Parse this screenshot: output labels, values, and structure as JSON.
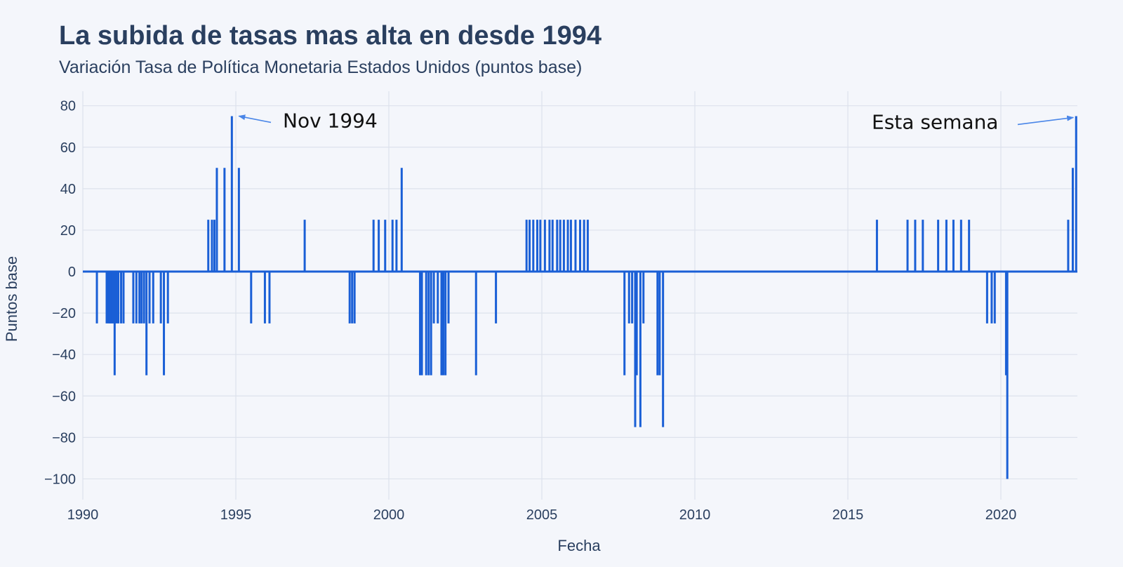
{
  "chart_data": {
    "type": "line",
    "title": "La subida de tasas mas alta en desde 1994",
    "subtitle": "Variación Tasa de Política Monetaria Estados Unidos (puntos base)",
    "xlabel": "Fecha",
    "ylabel": "Puntos base",
    "xlim": [
      1990.0,
      2022.5
    ],
    "ylim": [
      -110,
      87
    ],
    "x_ticks": [
      1990,
      1995,
      2000,
      2005,
      2010,
      2015,
      2020
    ],
    "y_ticks": [
      80,
      60,
      40,
      20,
      0,
      -20,
      -40,
      -60,
      -80,
      -100
    ],
    "y_tick_labels": [
      "80",
      "60",
      "40",
      "20",
      "0",
      "−20",
      "−40",
      "−60",
      "−80",
      "−100"
    ],
    "grid": true,
    "series": [
      {
        "color": "#1a5fd6",
        "points": [
          {
            "x": 1990.46,
            "y": -25
          },
          {
            "x": 1990.78,
            "y": -25
          },
          {
            "x": 1990.84,
            "y": -25
          },
          {
            "x": 1990.88,
            "y": -25
          },
          {
            "x": 1990.92,
            "y": -25
          },
          {
            "x": 1990.96,
            "y": -25
          },
          {
            "x": 1991.0,
            "y": -25
          },
          {
            "x": 1991.04,
            "y": -50
          },
          {
            "x": 1991.1,
            "y": -25
          },
          {
            "x": 1991.16,
            "y": -25
          },
          {
            "x": 1991.25,
            "y": -25
          },
          {
            "x": 1991.33,
            "y": -25
          },
          {
            "x": 1991.65,
            "y": -25
          },
          {
            "x": 1991.75,
            "y": -25
          },
          {
            "x": 1991.85,
            "y": -25
          },
          {
            "x": 1991.92,
            "y": -25
          },
          {
            "x": 1992.0,
            "y": -25
          },
          {
            "x": 1992.08,
            "y": -50
          },
          {
            "x": 1992.18,
            "y": -25
          },
          {
            "x": 1992.3,
            "y": -25
          },
          {
            "x": 1992.55,
            "y": -25
          },
          {
            "x": 1992.65,
            "y": -50
          },
          {
            "x": 1992.78,
            "y": -25
          },
          {
            "x": 1994.1,
            "y": 25
          },
          {
            "x": 1994.22,
            "y": 25
          },
          {
            "x": 1994.3,
            "y": 25
          },
          {
            "x": 1994.38,
            "y": 50
          },
          {
            "x": 1994.63,
            "y": 50
          },
          {
            "x": 1994.87,
            "y": 75
          },
          {
            "x": 1995.1,
            "y": 50
          },
          {
            "x": 1995.5,
            "y": -25
          },
          {
            "x": 1995.95,
            "y": -25
          },
          {
            "x": 1996.1,
            "y": -25
          },
          {
            "x": 1997.25,
            "y": 25
          },
          {
            "x": 1998.72,
            "y": -25
          },
          {
            "x": 1998.8,
            "y": -25
          },
          {
            "x": 1998.88,
            "y": -25
          },
          {
            "x": 1999.5,
            "y": 25
          },
          {
            "x": 1999.67,
            "y": 25
          },
          {
            "x": 1999.88,
            "y": 25
          },
          {
            "x": 2000.12,
            "y": 25
          },
          {
            "x": 2000.25,
            "y": 25
          },
          {
            "x": 2000.42,
            "y": 50
          },
          {
            "x": 2001.02,
            "y": -50
          },
          {
            "x": 2001.08,
            "y": -50
          },
          {
            "x": 2001.22,
            "y": -50
          },
          {
            "x": 2001.3,
            "y": -50
          },
          {
            "x": 2001.38,
            "y": -50
          },
          {
            "x": 2001.47,
            "y": -25
          },
          {
            "x": 2001.6,
            "y": -25
          },
          {
            "x": 2001.72,
            "y": -50
          },
          {
            "x": 2001.78,
            "y": -50
          },
          {
            "x": 2001.85,
            "y": -50
          },
          {
            "x": 2001.95,
            "y": -25
          },
          {
            "x": 2002.85,
            "y": -50
          },
          {
            "x": 2003.5,
            "y": -25
          },
          {
            "x": 2004.5,
            "y": 25
          },
          {
            "x": 2004.6,
            "y": 25
          },
          {
            "x": 2004.72,
            "y": 25
          },
          {
            "x": 2004.85,
            "y": 25
          },
          {
            "x": 2004.95,
            "y": 25
          },
          {
            "x": 2005.1,
            "y": 25
          },
          {
            "x": 2005.25,
            "y": 25
          },
          {
            "x": 2005.35,
            "y": 25
          },
          {
            "x": 2005.5,
            "y": 25
          },
          {
            "x": 2005.6,
            "y": 25
          },
          {
            "x": 2005.72,
            "y": 25
          },
          {
            "x": 2005.85,
            "y": 25
          },
          {
            "x": 2005.95,
            "y": 25
          },
          {
            "x": 2006.1,
            "y": 25
          },
          {
            "x": 2006.25,
            "y": 25
          },
          {
            "x": 2006.38,
            "y": 25
          },
          {
            "x": 2006.5,
            "y": 25
          },
          {
            "x": 2007.7,
            "y": -50
          },
          {
            "x": 2007.85,
            "y": -25
          },
          {
            "x": 2007.95,
            "y": -25
          },
          {
            "x": 2008.05,
            "y": -75
          },
          {
            "x": 2008.1,
            "y": -50
          },
          {
            "x": 2008.22,
            "y": -75
          },
          {
            "x": 2008.32,
            "y": -25
          },
          {
            "x": 2008.78,
            "y": -50
          },
          {
            "x": 2008.85,
            "y": -50
          },
          {
            "x": 2008.96,
            "y": -75
          },
          {
            "x": 2015.95,
            "y": 25
          },
          {
            "x": 2016.95,
            "y": 25
          },
          {
            "x": 2017.2,
            "y": 25
          },
          {
            "x": 2017.45,
            "y": 25
          },
          {
            "x": 2017.95,
            "y": 25
          },
          {
            "x": 2018.22,
            "y": 25
          },
          {
            "x": 2018.45,
            "y": 25
          },
          {
            "x": 2018.7,
            "y": 25
          },
          {
            "x": 2018.96,
            "y": 25
          },
          {
            "x": 2019.55,
            "y": -25
          },
          {
            "x": 2019.7,
            "y": -25
          },
          {
            "x": 2019.8,
            "y": -25
          },
          {
            "x": 2020.17,
            "y": -50
          },
          {
            "x": 2020.21,
            "y": -100
          },
          {
            "x": 2022.2,
            "y": 25
          },
          {
            "x": 2022.35,
            "y": 50
          },
          {
            "x": 2022.46,
            "y": 75
          }
        ]
      }
    ],
    "annotations": [
      {
        "text": "Nov 1994",
        "x": 1994.87,
        "y": 75
      },
      {
        "text": "Esta semana",
        "x": 2022.46,
        "y": 75
      }
    ]
  }
}
